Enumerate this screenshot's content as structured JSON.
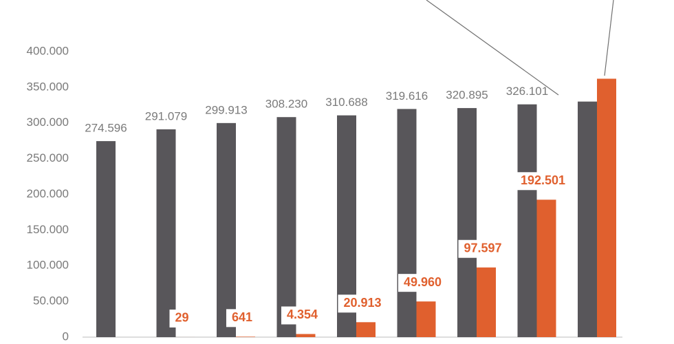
{
  "chart_data": {
    "type": "bar",
    "categories": [
      null,
      null,
      null,
      null,
      null,
      null,
      null,
      null,
      null
    ],
    "series": [
      {
        "color": "#58565a",
        "values": [
          274596,
          291079,
          299913,
          308230,
          310688,
          319616,
          320895,
          326101,
          330000
        ],
        "value_labels": [
          "274.596",
          "291.079",
          "299.913",
          "308.230",
          "310.688",
          "319.616",
          "320.895",
          "326.101",
          null
        ]
      },
      {
        "color": "#e0602e",
        "values": [
          null,
          29,
          641,
          4354,
          20913,
          49960,
          97597,
          192501,
          362000
        ],
        "value_labels": [
          null,
          "29",
          "641",
          "4.354",
          "20.913",
          "49.960",
          "97.597",
          "192.501",
          null
        ]
      }
    ],
    "ylim": [
      0,
      400000
    ],
    "yticks": [
      {
        "value": 0,
        "label": "0"
      },
      {
        "value": 50000,
        "label": "50.000"
      },
      {
        "value": 100000,
        "label": "100.000"
      },
      {
        "value": 150000,
        "label": "150.000"
      },
      {
        "value": 200000,
        "label": "200.000"
      },
      {
        "value": 250000,
        "label": "250.000"
      },
      {
        "value": 300000,
        "label": "300.000"
      },
      {
        "value": 350000,
        "label": "350.000"
      },
      {
        "value": 400000,
        "label": "400.000"
      }
    ]
  }
}
